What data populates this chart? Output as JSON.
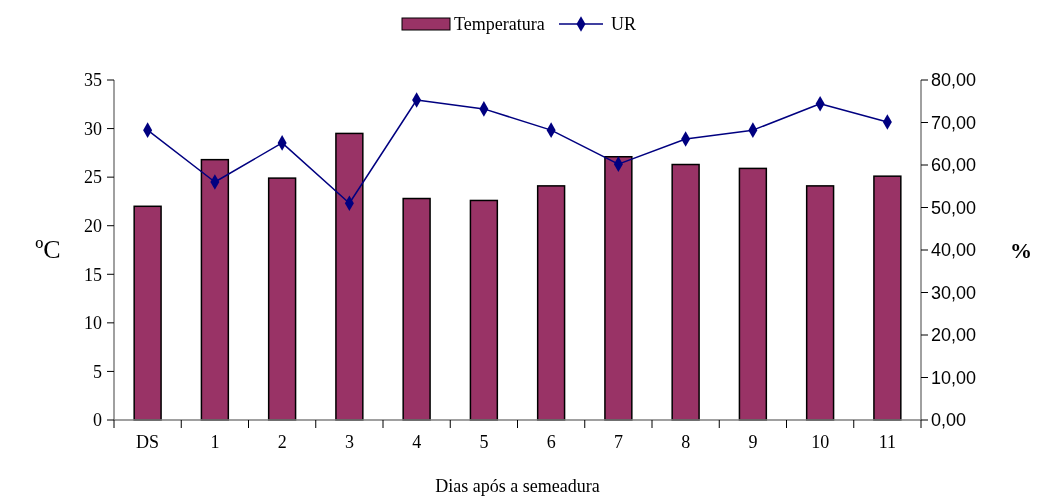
{
  "chart_data": {
    "type": "bar",
    "xlabel": "Dias após a semeadura",
    "ylabel": "ºC",
    "y2label": "%",
    "categories": [
      "DS",
      "1",
      "2",
      "3",
      "4",
      "5",
      "6",
      "7",
      "8",
      "9",
      "10",
      "11"
    ],
    "series": [
      {
        "name": "Temperatura",
        "color": "#993366",
        "values": [
          22.0,
          26.8,
          24.9,
          29.5,
          22.8,
          22.6,
          24.1,
          27.1,
          26.3,
          25.9,
          24.1,
          25.1
        ]
      },
      {
        "name": "UR",
        "type": "line",
        "axis": "y2",
        "color": "#000080",
        "marker": "diamond",
        "values": [
          68.2,
          56.0,
          65.2,
          51.0,
          75.3,
          73.2,
          68.2,
          60.2,
          66.1,
          68.2,
          74.4,
          70.1
        ]
      }
    ],
    "ylim": [
      0,
      35
    ],
    "yticks": [
      0,
      5,
      10,
      15,
      20,
      25,
      30,
      35
    ],
    "y2lim": [
      0,
      80
    ],
    "y2ticks": [
      {
        "value": 0,
        "label": "0,00"
      },
      {
        "value": 10,
        "label": "10,00"
      },
      {
        "value": 20,
        "label": "20,00"
      },
      {
        "value": 30,
        "label": "30,00"
      },
      {
        "value": 40,
        "label": "40,00"
      },
      {
        "value": 50,
        "label": "50,00"
      },
      {
        "value": 60,
        "label": "60,00"
      },
      {
        "value": 70,
        "label": "70,00"
      },
      {
        "value": 80,
        "label": "80,00"
      }
    ],
    "legend": "top",
    "grid": false
  }
}
